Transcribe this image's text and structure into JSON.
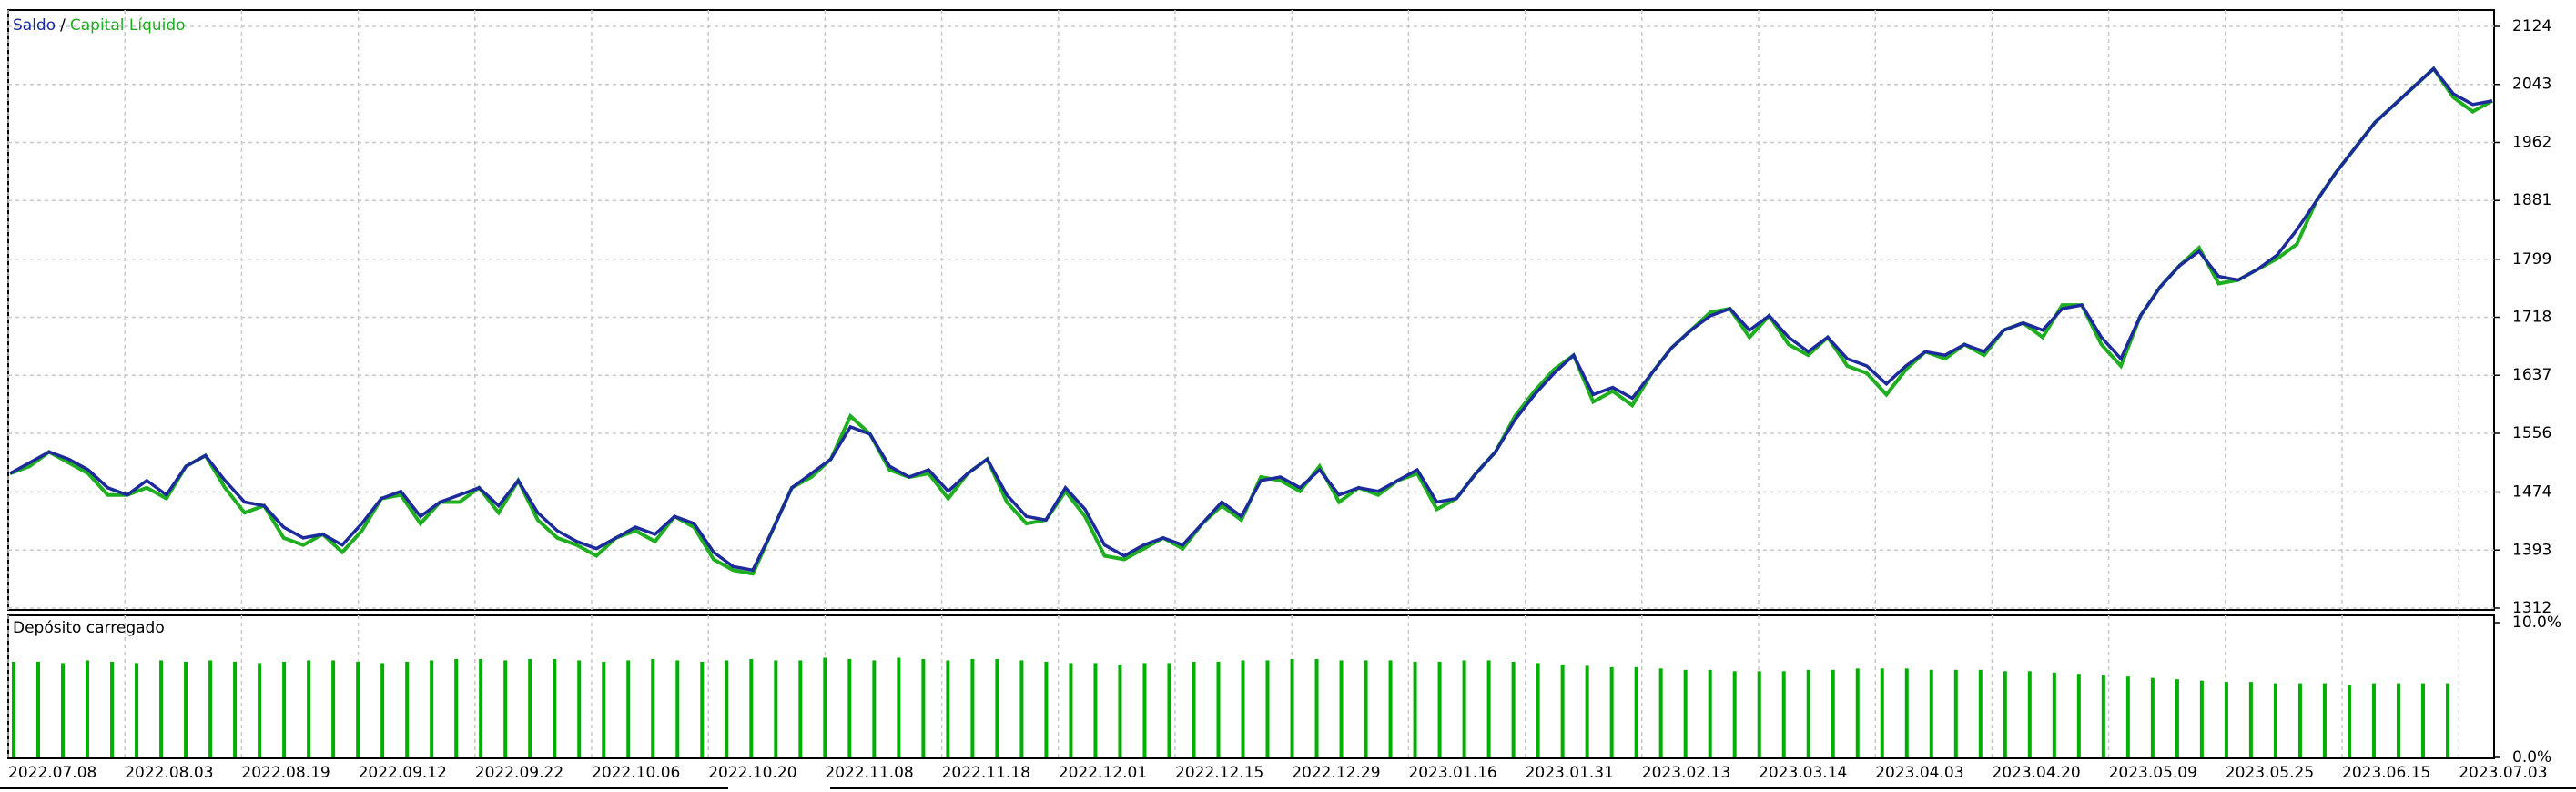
{
  "chart_data": [
    {
      "type": "line",
      "series": [
        {
          "name": "Capital Líquido",
          "color": "#1fae1f",
          "values": [
            1500,
            1510,
            1530,
            1515,
            1500,
            1470,
            1470,
            1480,
            1465,
            1510,
            1525,
            1480,
            1445,
            1455,
            1410,
            1400,
            1415,
            1390,
            1420,
            1465,
            1470,
            1430,
            1460,
            1460,
            1480,
            1445,
            1490,
            1435,
            1410,
            1400,
            1385,
            1410,
            1420,
            1405,
            1440,
            1425,
            1380,
            1365,
            1360,
            1420,
            1480,
            1495,
            1520,
            1580,
            1555,
            1505,
            1495,
            1500,
            1465,
            1500,
            1520,
            1460,
            1430,
            1435,
            1475,
            1440,
            1385,
            1380,
            1395,
            1410,
            1395,
            1430,
            1455,
            1435,
            1495,
            1490,
            1475,
            1510,
            1460,
            1480,
            1470,
            1490,
            1500,
            1450,
            1465,
            1500,
            1530,
            1580,
            1615,
            1645,
            1665,
            1600,
            1615,
            1595,
            1640,
            1675,
            1700,
            1725,
            1730,
            1690,
            1720,
            1680,
            1665,
            1690,
            1650,
            1640,
            1610,
            1645,
            1670,
            1660,
            1680,
            1665,
            1700,
            1710,
            1690,
            1735,
            1735,
            1680,
            1650,
            1720,
            1760,
            1790,
            1815,
            1765,
            1770,
            1785,
            1800,
            1820,
            1880,
            1920,
            1955,
            1990,
            2015,
            2040,
            2065,
            2025,
            2005,
            2020
          ]
        },
        {
          "name": "Saldo",
          "color": "#1c2a9c",
          "values": [
            1500,
            1515,
            1530,
            1520,
            1505,
            1480,
            1470,
            1490,
            1470,
            1510,
            1525,
            1490,
            1460,
            1455,
            1425,
            1410,
            1415,
            1400,
            1430,
            1465,
            1475,
            1440,
            1460,
            1470,
            1480,
            1455,
            1490,
            1445,
            1420,
            1405,
            1395,
            1410,
            1425,
            1415,
            1440,
            1430,
            1390,
            1370,
            1365,
            1420,
            1480,
            1500,
            1520,
            1565,
            1555,
            1510,
            1495,
            1505,
            1475,
            1500,
            1520,
            1470,
            1440,
            1435,
            1480,
            1450,
            1400,
            1385,
            1400,
            1410,
            1400,
            1430,
            1460,
            1440,
            1490,
            1495,
            1480,
            1505,
            1470,
            1480,
            1475,
            1490,
            1505,
            1460,
            1465,
            1500,
            1530,
            1575,
            1610,
            1640,
            1665,
            1610,
            1620,
            1605,
            1640,
            1675,
            1700,
            1720,
            1730,
            1700,
            1720,
            1690,
            1670,
            1690,
            1660,
            1650,
            1625,
            1650,
            1670,
            1665,
            1680,
            1670,
            1700,
            1710,
            1700,
            1730,
            1735,
            1690,
            1660,
            1720,
            1760,
            1790,
            1810,
            1775,
            1770,
            1785,
            1805,
            1840,
            1880,
            1920,
            1955,
            1990,
            2015,
            2040,
            2065,
            2030,
            2015,
            2020
          ]
        }
      ],
      "legend_separator": "/",
      "ylim": [
        1312,
        2124
      ],
      "yticks": [
        2124,
        2043,
        1962,
        1881,
        1799,
        1718,
        1637,
        1556,
        1474,
        1393,
        1312
      ],
      "grid": true
    },
    {
      "type": "bar",
      "title": "Depósito carregado",
      "color": "#00b000",
      "values": [
        7.1,
        7.1,
        7.0,
        7.2,
        7.1,
        7.0,
        7.2,
        7.1,
        7.2,
        7.1,
        7.0,
        7.1,
        7.2,
        7.2,
        7.1,
        7.0,
        7.1,
        7.2,
        7.3,
        7.3,
        7.2,
        7.3,
        7.3,
        7.2,
        7.1,
        7.2,
        7.3,
        7.2,
        7.1,
        7.2,
        7.3,
        7.2,
        7.2,
        7.4,
        7.3,
        7.2,
        7.4,
        7.3,
        7.2,
        7.3,
        7.3,
        7.2,
        7.1,
        7.0,
        7.0,
        6.9,
        7.0,
        7.0,
        7.1,
        7.1,
        7.2,
        7.2,
        7.3,
        7.3,
        7.2,
        7.2,
        7.2,
        7.1,
        7.1,
        7.2,
        7.2,
        7.1,
        7.0,
        6.9,
        6.8,
        6.7,
        6.7,
        6.6,
        6.5,
        6.5,
        6.4,
        6.4,
        6.4,
        6.5,
        6.5,
        6.6,
        6.6,
        6.6,
        6.5,
        6.5,
        6.5,
        6.4,
        6.4,
        6.3,
        6.2,
        6.1,
        6.0,
        5.9,
        5.8,
        5.7,
        5.6,
        5.6,
        5.5,
        5.5,
        5.5,
        5.4,
        5.5,
        5.5,
        5.5,
        5.5
      ],
      "ylim": [
        0,
        10
      ],
      "yticks": [
        {
          "value": 10,
          "label": "10.0%"
        },
        {
          "value": 0,
          "label": "0.0%"
        }
      ],
      "x_tick_labels": [
        "2022.07.08",
        "2022.08.03",
        "2022.08.19",
        "2022.09.12",
        "2022.09.22",
        "2022.10.06",
        "2022.10.20",
        "2022.11.08",
        "2022.11.18",
        "2022.12.01",
        "2022.12.15",
        "2022.12.29",
        "2023.01.16",
        "2023.01.31",
        "2023.02.13",
        "2023.03.14",
        "2023.04.03",
        "2023.04.20",
        "2023.05.09",
        "2023.05.25",
        "2023.06.15",
        "2023.07.03"
      ],
      "grid": true
    }
  ]
}
